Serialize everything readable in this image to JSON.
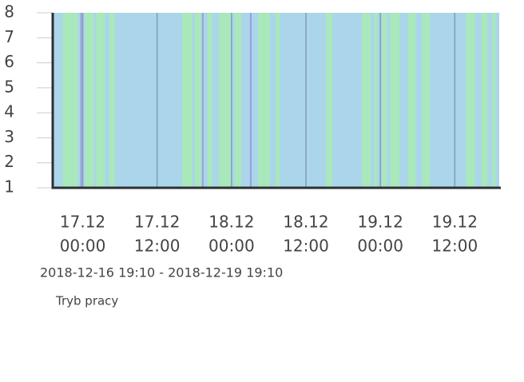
{
  "chart_data": {
    "type": "timeline",
    "background_color": "#abd5ea",
    "grid_color": "#7f9fb5",
    "ylim": [
      1,
      8
    ],
    "yticks": [
      1,
      2,
      3,
      4,
      5,
      6,
      7,
      8
    ],
    "xlim": [
      "2018-12-16 19:10",
      "2018-12-19 19:10"
    ],
    "xticks": [
      {
        "value": "2018-12-17 00:00",
        "label": [
          "17.12",
          "00:00"
        ]
      },
      {
        "value": "2018-12-17 12:00",
        "label": [
          "17.12",
          "12:00"
        ]
      },
      {
        "value": "2018-12-18 00:00",
        "label": [
          "18.12",
          "00:00"
        ]
      },
      {
        "value": "2018-12-18 12:00",
        "label": [
          "18.12",
          "12:00"
        ]
      },
      {
        "value": "2018-12-19 00:00",
        "label": [
          "19.12",
          "00:00"
        ]
      },
      {
        "value": "2018-12-19 12:00",
        "label": [
          "19.12",
          "12:00"
        ]
      }
    ],
    "subtitle": "2018-12-16 19:10 - 2018-12-19 19:10",
    "legend": "Tryb pracy",
    "segments": [
      {
        "start": "2018-12-16 20:47",
        "end": "2018-12-16 23:14",
        "color": "#a8e8bb"
      },
      {
        "start": "2018-12-16 23:37",
        "end": "2018-12-16 23:53",
        "color": "#9c9fdc"
      },
      {
        "start": "2018-12-17 00:24",
        "end": "2018-12-17 01:49",
        "color": "#a8e8bb"
      },
      {
        "start": "2018-12-17 02:12",
        "end": "2018-12-17 03:37",
        "color": "#a8e8bb"
      },
      {
        "start": "2018-12-17 04:16",
        "end": "2018-12-17 05:10",
        "color": "#a8e8bb"
      },
      {
        "start": "2018-12-17 16:00",
        "end": "2018-12-17 17:41",
        "color": "#a8e8bb"
      },
      {
        "start": "2018-12-17 18:04",
        "end": "2018-12-17 19:06",
        "color": "#a8e8bb"
      },
      {
        "start": "2018-12-17 19:14",
        "end": "2018-12-17 19:30",
        "color": "#9c9fdc"
      },
      {
        "start": "2018-12-17 20:08",
        "end": "2018-12-17 20:55",
        "color": "#a8e8bb"
      },
      {
        "start": "2018-12-17 21:56",
        "end": "2018-12-17 23:53",
        "color": "#a8e8bb"
      },
      {
        "start": "2018-12-18 00:31",
        "end": "2018-12-18 01:33",
        "color": "#a8e8bb"
      },
      {
        "start": "2018-12-18 02:58",
        "end": "2018-12-18 03:14",
        "color": "#9c9fdc"
      },
      {
        "start": "2018-12-18 04:16",
        "end": "2018-12-18 06:12",
        "color": "#a8e8bb"
      },
      {
        "start": "2018-12-18 07:06",
        "end": "2018-12-18 07:45",
        "color": "#a8e8bb"
      },
      {
        "start": "2018-12-18 15:14",
        "end": "2018-12-18 16:16",
        "color": "#a8e8bb"
      },
      {
        "start": "2018-12-18 21:02",
        "end": "2018-12-18 22:27",
        "color": "#a8e8bb"
      },
      {
        "start": "2018-12-18 22:58",
        "end": "2018-12-18 23:29",
        "color": "#a8e8bb"
      },
      {
        "start": "2018-12-19 00:16",
        "end": "2018-12-19 01:02",
        "color": "#a8e8bb"
      },
      {
        "start": "2018-12-19 01:33",
        "end": "2018-12-19 03:06",
        "color": "#a8e8bb"
      },
      {
        "start": "2018-12-19 04:24",
        "end": "2018-12-19 05:41",
        "color": "#a8e8bb"
      },
      {
        "start": "2018-12-19 06:43",
        "end": "2018-12-19 08:00",
        "color": "#a8e8bb"
      },
      {
        "start": "2018-12-19 13:49",
        "end": "2018-12-19 15:14",
        "color": "#a8e8bb"
      },
      {
        "start": "2018-12-19 16:16",
        "end": "2018-12-19 17:18",
        "color": "#a8e8bb"
      },
      {
        "start": "2018-12-19 18:04",
        "end": "2018-12-19 18:35",
        "color": "#a8e8bb"
      }
    ]
  }
}
